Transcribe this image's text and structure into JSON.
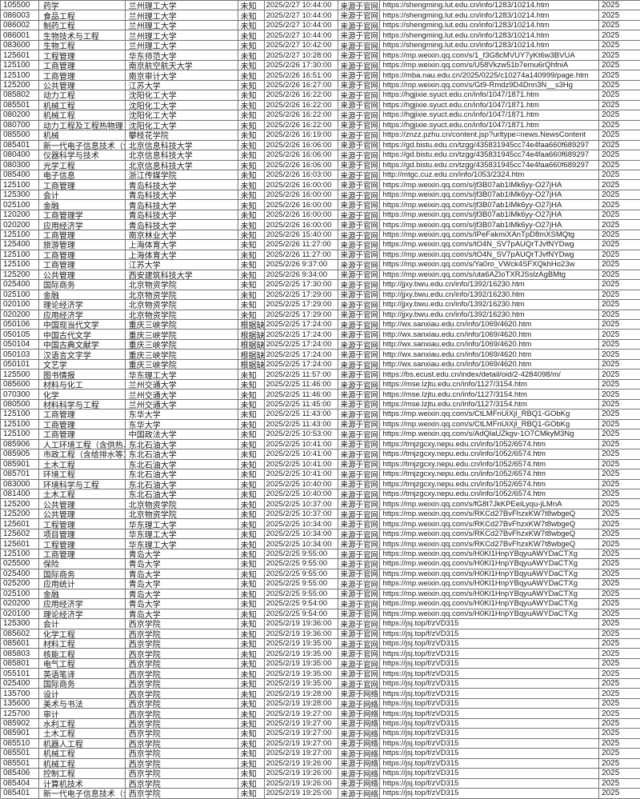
{
  "colors": {
    "background": "#ffffff",
    "grid_border": "#767676",
    "text": "#1c1c1c"
  },
  "table": {
    "columns": [
      "code",
      "subject",
      "university",
      "status",
      "publish_time",
      "source",
      "url",
      "year"
    ],
    "rows": [
      [
        "105500",
        "药学",
        "兰州理工大学",
        "未知",
        "2025/2/27 10:44:00",
        "来源于官网",
        "https://shengming.lut.edu.cn/info/1283/10214.htm",
        "2025"
      ],
      [
        "086003",
        "食品工程",
        "兰州理工大学",
        "未知",
        "2025/2/27 10:44:00",
        "来源于官网",
        "https://shengming.lut.edu.cn/info/1283/10214.htm",
        "2025"
      ],
      [
        "086002",
        "制药工程",
        "兰州理工大学",
        "未知",
        "2025/2/27 10:44:00",
        "来源于官网",
        "https://shengming.lut.edu.cn/info/1283/10214.htm",
        "2025"
      ],
      [
        "086001",
        "生物技术与工程",
        "兰州理工大学",
        "未知",
        "2025/2/27 10:44:00",
        "来源于官网",
        "https://shengming.lut.edu.cn/info/1283/10214.htm",
        "2025"
      ],
      [
        "083600",
        "生物工程",
        "兰州理工大学",
        "未知",
        "2025/2/27 10:42:00",
        "来源于官网",
        "https://shengming.lut.edu.cn/info/1283/10214.htm",
        "2025"
      ],
      [
        "125601",
        "工程管理",
        "华东师范大学",
        "未知",
        "2025/2/27 10:28:00",
        "来源于官网",
        "https://mp.weixin.qq.com/s/1_f3G8cMVUY7yKt6w3BVUA",
        "2025"
      ],
      [
        "125100",
        "工商管理",
        "南京航空航天大学",
        "未知",
        "2025/2/26 17:30:00",
        "来源于官网",
        "https://mp.weixin.qq.com/s/U58Vkzw51b7emu6rQhfniA",
        "2025"
      ],
      [
        "125100",
        "工商管理",
        "南京审计大学",
        "未知",
        "2025/2/26 16:51:00",
        "来源于官网",
        "https://mba.nau.edu.cn/2025/0225/c10274a140999/page.htm",
        "2025"
      ],
      [
        "125200",
        "公共管理",
        "江苏大学",
        "未知",
        "2025/2/26 16:27:00",
        "来源于官网",
        "https://mp.weixin.qq.com/s/Gt9-Rmdz9D4Dnn3N__s3Hg",
        "2025"
      ],
      [
        "085802",
        "动力工程",
        "沈阳化工大学",
        "未知",
        "2025/2/26 16:22:00",
        "来源于官网",
        "https://hgjixie.syuct.edu.cn/info/1047/1871.htm",
        "2025"
      ],
      [
        "085501",
        "机械工程",
        "沈阳化工大学",
        "未知",
        "2025/2/26 16:22:00",
        "来源于官网",
        "https://hgjixie.syuct.edu.cn/info/1047/1871.htm",
        "2025"
      ],
      [
        "080200",
        "机械工程",
        "沈阳化工大学",
        "未知",
        "2025/2/26 16:22:00",
        "来源于官网",
        "https://hgjixie.syuct.edu.cn/info/1047/1871.htm",
        "2025"
      ],
      [
        "080700",
        "动力工程及工程热物理",
        "沈阳化工大学",
        "未知",
        "2025/2/26 16:22:00",
        "来源于官网",
        "https://hgjixie.syuct.edu.cn/info/1047/1871.htm",
        "2025"
      ],
      [
        "085500",
        "机械",
        "攀枝花学院",
        "未知",
        "2025/2/26 16:19:00",
        "来源于官网",
        "https://znzz.pzhu.cn/content.jsp?urltype=news.NewsContent",
        "2025"
      ],
      [
        "085401",
        "新一代电子信息技术（含",
        "北京信息科技大学",
        "未知",
        "2025/2/26 16:06:00",
        "来源于官网",
        "https://gd.bistu.edu.cn/tzgg/435831945cc74e4faa660f689297",
        "2025"
      ],
      [
        "080400",
        "仪器科学与技术",
        "北京信息科技大学",
        "未知",
        "2025/2/26 16:06:00",
        "来源于官网",
        "https://gd.bistu.edu.cn/tzgg/435831945cc74e4faa660f689297",
        "2025"
      ],
      [
        "080300",
        "光学工程",
        "北京信息科技大学",
        "未知",
        "2025/2/26 16:06:00",
        "来源于官网",
        "https://gd.bistu.edu.cn/tzgg/435831945cc74e4faa660f689297",
        "2025"
      ],
      [
        "085400",
        "电子信息",
        "浙江传媒学院",
        "未知",
        "2025/2/26 16:03:00",
        "来源于官网",
        "http://mtgc.cuz.edu.cn/info/1053/2324.htm",
        "2025"
      ],
      [
        "125100",
        "工商管理",
        "青岛科技大学",
        "未知",
        "2025/2/26 16:00:00",
        "来源于官网",
        "https://mp.weixin.qq.com/s/jf3B07ab1IMk6yy-O27jHA",
        "2025"
      ],
      [
        "125300",
        "会计",
        "青岛科技大学",
        "未知",
        "2025/2/26 16:00:00",
        "来源于官网",
        "https://mp.weixin.qq.com/s/jf3B07ab1IMk6yy-O27jHA",
        "2025"
      ],
      [
        "025100",
        "金融",
        "青岛科技大学",
        "未知",
        "2025/2/26 16:00:00",
        "来源于官网",
        "https://mp.weixin.qq.com/s/jf3B07ab1IMk6yy-O27jHA",
        "2025"
      ],
      [
        "120200",
        "工商管理学",
        "青岛科技大学",
        "未知",
        "2025/2/26 16:00:00",
        "来源于官网",
        "https://mp.weixin.qq.com/s/jf3B07ab1IMk6yy-O27jHA",
        "2025"
      ],
      [
        "020200",
        "应用经济学",
        "青岛科技大学",
        "未知",
        "2025/2/26 16:00:00",
        "来源于官网",
        "https://mp.weixin.qq.com/s/jf3B07ab1IMk6yy-O27jHA",
        "2025"
      ],
      [
        "125100",
        "工商管理",
        "南京林业大学",
        "未知",
        "2025/2/26 15:40:00",
        "来源于官网",
        "https://mp.weixin.qq.com/s/IPeFakmiXAnTpD8mXSMQtg",
        "2025"
      ],
      [
        "125400",
        "旅游管理",
        "上海体育大学",
        "未知",
        "2025/2/26 11:27:00",
        "来源于官网",
        "https://mp.weixin.qq.com/s/tO4N_SV7pAUQrTJvfNYDwg",
        "2025"
      ],
      [
        "125100",
        "工商管理",
        "上海体育大学",
        "未知",
        "2025/2/26 11:27:00",
        "来源于官网",
        "https://mp.weixin.qq.com/s/tO4N_SV7pAUQrTJvfNYDwg",
        "2025"
      ],
      [
        "125100",
        "工商管理",
        "江苏大学",
        "未知",
        "2025/2/26 9:37:00",
        "来源于官网",
        "https://mp.weixin.qq.com/s/Ya0ro_VWck4SFXQkhHo23w",
        "2025"
      ],
      [
        "125200",
        "公共管理",
        "西安建筑科技大学",
        "未知",
        "2025/2/26 9:34:00",
        "来源于官网",
        "https://mp.weixin.qq.com/s/uta6AZIoTXRJSslzAgBMtg",
        "2025"
      ],
      [
        "025400",
        "国际商务",
        "北京物资学院",
        "未知",
        "2025/2/25 17:30:00",
        "来源于官网",
        "http://jjxy.bwu.edu.cn/info/1392/16230.htm",
        "2025"
      ],
      [
        "025100",
        "金融",
        "北京物资学院",
        "未知",
        "2025/2/25 17:29:00",
        "来源于官网",
        "http://jjxy.bwu.edu.cn/info/1392/16230.htm",
        "2025"
      ],
      [
        "020100",
        "理论经济学",
        "北京物资学院",
        "未知",
        "2025/2/25 17:29:00",
        "来源于官网",
        "http://jjxy.bwu.edu.cn/info/1392/16230.htm",
        "2025"
      ],
      [
        "020200",
        "应用经济学",
        "北京物资学院",
        "未知",
        "2025/2/25 17:29:00",
        "来源于官网",
        "http://jjxy.bwu.edu.cn/info/1392/16230.htm",
        "2025"
      ],
      [
        "050106",
        "中国现当代文学",
        "重庆三峡学院",
        "根据缺额",
        "2025/2/25 17:24:00",
        "来源于官网",
        "http://wx.sanxiau.edu.cn/info/1069/4620.htm",
        "2025"
      ],
      [
        "050105",
        "中国古代文学",
        "重庆三峡学院",
        "根据缺额",
        "2025/2/25 17:24:00",
        "来源于官网",
        "http://wx.sanxiau.edu.cn/info/1069/4620.htm",
        "2025"
      ],
      [
        "050104",
        "中国古典文献学",
        "重庆三峡学院",
        "根据缺额",
        "2025/2/25 17:24:00",
        "来源于官网",
        "http://wx.sanxiau.edu.cn/info/1069/4620.htm",
        "2025"
      ],
      [
        "050103",
        "汉语言文字学",
        "重庆三峡学院",
        "根据缺额",
        "2025/2/25 17:24:00",
        "来源于官网",
        "http://wx.sanxiau.edu.cn/info/1069/4620.htm",
        "2025"
      ],
      [
        "050101",
        "文艺学",
        "重庆三峡学院",
        "根据缺额",
        "2025/2/25 17:24:00",
        "来源于官网",
        "http://wx.sanxiau.edu.cn/info/1069/4620.htm",
        "2025"
      ],
      [
        "125500",
        "图书情报",
        "华东理工大学",
        "未知",
        "2025/2/25 11:57:00",
        "来源于官网",
        "https://bs.ecust.edu.cn/index/detail/oid/2-4284098/m/",
        "2025"
      ],
      [
        "085600",
        "材料与化工",
        "兰州交通大学",
        "未知",
        "2025/2/25 11:46:00",
        "来源于官网",
        "https://mse.lzjtu.edu.cn/info/1127/3154.htm",
        "2025"
      ],
      [
        "070300",
        "化学",
        "兰州交通大学",
        "未知",
        "2025/2/25 11:46:00",
        "来源于官网",
        "https://mse.lzjtu.edu.cn/info/1127/3154.htm",
        "2025"
      ],
      [
        "080500",
        "材料科学与工程",
        "兰州交通大学",
        "未知",
        "2025/2/25 11:45:00",
        "来源于官网",
        "https://mse.lzjtu.edu.cn/info/1127/3154.htm",
        "2025"
      ],
      [
        "125100",
        "工商管理",
        "东华大学",
        "未知",
        "2025/2/25 11:43:00",
        "来源于官网",
        "https://mp.weixin.qq.com/s/CtLMFnUiXjl_RBQ1-GObKg",
        "2025"
      ],
      [
        "125100",
        "工商管理",
        "东华大学",
        "未知",
        "2025/2/25 11:43:00",
        "来源于官网",
        "https://mp.weixin.qq.com/s/CtLMFnUiXjl_RBQ1-GObKg",
        "2025"
      ],
      [
        "125100",
        "工商管理",
        "中国政法大学",
        "未知",
        "2025/2/25 10:53:00",
        "来源于官网",
        "https://mp.weixin.qq.com/s/AdQlaUZkgv-1O7CMkyM3Ng",
        "2025"
      ],
      [
        "085906",
        "人工环境工程（含供热、",
        "东北石油大学",
        "未知",
        "2025/2/25 10:41:00",
        "来源于官网",
        "https://tmjzgcxy.nepu.edu.cn/info/1052/6574.htm",
        "2025"
      ],
      [
        "085905",
        "市政工程（含给排水等）",
        "东北石油大学",
        "未知",
        "2025/2/25 10:41:00",
        "来源于官网",
        "https://tmjzgcxy.nepu.edu.cn/info/1052/6574.htm",
        "2025"
      ],
      [
        "085901",
        "土木工程",
        "东北石油大学",
        "未知",
        "2025/2/25 10:41:00",
        "来源于官网",
        "https://tmjzgcxy.nepu.edu.cn/info/1052/6574.htm",
        "2025"
      ],
      [
        "085701",
        "环境工程",
        "东北石油大学",
        "未知",
        "2025/2/25 10:41:00",
        "来源于官网",
        "https://tmjzgcxy.nepu.edu.cn/info/1052/6574.htm",
        "2025"
      ],
      [
        "083000",
        "环境科学与工程",
        "东北石油大学",
        "未知",
        "2025/2/25 10:40:00",
        "来源于官网",
        "https://tmjzgcxy.nepu.edu.cn/info/1052/6574.htm",
        "2025"
      ],
      [
        "081400",
        "土木工程",
        "东北石油大学",
        "未知",
        "2025/2/25 10:40:00",
        "来源于官网",
        "https://tmjzgcxy.nepu.edu.cn/info/1052/6574.htm",
        "2025"
      ],
      [
        "125200",
        "公共管理",
        "北京物资学院",
        "未知",
        "2025/2/25 10:37:00",
        "来源于官网",
        "https://mp.weixin.qq.com/s/fG8t7JkKPEeiLyqu-jLMnA",
        "2025"
      ],
      [
        "125200",
        "公共管理",
        "北京物资学院",
        "未知",
        "2025/2/25 10:37:00",
        "来源于官网",
        "https://mp.weixin.qq.com/s/RKCd27BvFhzxKW7t8wbgeQ",
        "2025"
      ],
      [
        "125601",
        "工程管理",
        "华东理工大学",
        "未知",
        "2025/2/25 10:34:00",
        "来源于官网",
        "https://mp.weixin.qq.com/s/RKCd27BvFhzxKW7t8wbgeQ",
        "2025"
      ],
      [
        "125602",
        "项目管理",
        "华东理工大学",
        "未知",
        "2025/2/25 10:34:00",
        "来源于官网",
        "https://mp.weixin.qq.com/s/RKCd27BvFhzxKW7t8wbgeQ",
        "2025"
      ],
      [
        "125601",
        "工程管理",
        "华东理工大学",
        "未知",
        "2025/2/25 10:34:00",
        "来源于官网",
        "https://mp.weixin.qq.com/s/RKCd27BvFhzxKW7t8wbgeQ",
        "2025"
      ],
      [
        "125100",
        "工商管理",
        "青岛大学",
        "未知",
        "2025/2/25 9:55:00",
        "来源于官网",
        "https://mp.weixin.qq.com/s/H0Kl1HnpYBqyuAWYDaCTXg",
        "2025"
      ],
      [
        "025500",
        "保险",
        "青岛大学",
        "未知",
        "2025/2/25 9:55:00",
        "来源于官网",
        "https://mp.weixin.qq.com/s/H0Kl1HnpYBqyuAWYDaCTXg",
        "2025"
      ],
      [
        "025400",
        "国际商务",
        "青岛大学",
        "未知",
        "2025/2/25 9:55:00",
        "来源于官网",
        "https://mp.weixin.qq.com/s/H0Kl1HnpYBqyuAWYDaCTXg",
        "2025"
      ],
      [
        "025200",
        "应用统计",
        "青岛大学",
        "未知",
        "2025/2/25 9:55:00",
        "来源于官网",
        "https://mp.weixin.qq.com/s/H0Kl1HnpYBqyuAWYDaCTXg",
        "2025"
      ],
      [
        "025100",
        "金融",
        "青岛大学",
        "未知",
        "2025/2/25 9:55:00",
        "来源于官网",
        "https://mp.weixin.qq.com/s/H0Kl1HnpYBqyuAWYDaCTXg",
        "2025"
      ],
      [
        "020200",
        "应用经济学",
        "青岛大学",
        "未知",
        "2025/2/25 9:54:00",
        "来源于官网",
        "https://mp.weixin.qq.com/s/H0Kl1HnpYBqyuAWYDaCTXg",
        "2025"
      ],
      [
        "020100",
        "理论经济学",
        "青岛大学",
        "未知",
        "2025/2/25 9:54:00",
        "来源于官网",
        "https://mp.weixin.qq.com/s/H0Kl1HnpYBqyuAWYDaCTXg",
        "2025"
      ],
      [
        "125300",
        "会计",
        "西京学院",
        "未知",
        "2025/2/19 19:36:00",
        "来源于官网",
        "https://jsj.top/f/zVD315",
        "2025"
      ],
      [
        "085602",
        "化学工程",
        "西京学院",
        "未知",
        "2025/2/19 19:36:00",
        "来源于官网",
        "https://jsj.top/f/zVD315",
        "2025"
      ],
      [
        "085601",
        "材料工程",
        "西京学院",
        "未知",
        "2025/2/19 19:35:00",
        "来源于官网",
        "https://jsj.top/f/zVD315",
        "2025"
      ],
      [
        "085803",
        "核能工程",
        "西京学院",
        "未知",
        "2025/2/19 19:35:00",
        "来源于官网",
        "https://jsj.top/f/zVD315",
        "2025"
      ],
      [
        "085801",
        "电气工程",
        "西京学院",
        "未知",
        "2025/2/19 19:35:00",
        "来源于官网",
        "https://jsj.top/f/zVD315",
        "2025"
      ],
      [
        "055101",
        "英语笔译",
        "西京学院",
        "未知",
        "2025/2/19 19:35:00",
        "来源于官网",
        "https://jsj.top/f/zVD315",
        "2025"
      ],
      [
        "025400",
        "国际商务",
        "西京学院",
        "未知",
        "2025/2/19 19:35:00",
        "来源于官网",
        "https://jsj.top/f/zVD315",
        "2025"
      ],
      [
        "135700",
        "设计",
        "西京学院",
        "未知",
        "2025/2/19 19:28:00",
        "来源于网络",
        "https://jsj.top/f/zVD315",
        "2025"
      ],
      [
        "135600",
        "美术与书法",
        "西京学院",
        "未知",
        "2025/2/19 19:28:00",
        "来源于网络",
        "https://jsj.top/f/zVD315",
        "2025"
      ],
      [
        "125700",
        "审计",
        "西京学院",
        "未知",
        "2025/2/19 19:27:00",
        "来源于网络",
        "https://jsj.top/f/zVD315",
        "2025"
      ],
      [
        "085902",
        "水利工程",
        "西京学院",
        "未知",
        "2025/2/19 19:27:00",
        "来源于网络",
        "https://jsj.top/f/zVD315",
        "2025"
      ],
      [
        "085901",
        "土木工程",
        "西京学院",
        "未知",
        "2025/2/19 19:27:00",
        "来源于网络",
        "https://jsj.top/f/zVD315",
        "2025"
      ],
      [
        "085510",
        "机器人工程",
        "西京学院",
        "未知",
        "2025/2/19 19:27:00",
        "来源于网络",
        "https://jsj.top/f/zVD315",
        "2025"
      ],
      [
        "085501",
        "机械工程",
        "西京学院",
        "未知",
        "2025/2/19 19:27:00",
        "来源于网络",
        "https://jsj.top/f/zVD315",
        "2025"
      ],
      [
        "085501",
        "机械工程",
        "西京学院",
        "未知",
        "2025/2/19 19:26:00",
        "来源于网络",
        "https://jsj.top/f/zVD315",
        "2025"
      ],
      [
        "085406",
        "控制工程",
        "西京学院",
        "未知",
        "2025/2/19 19:26:00",
        "来源于网络",
        "https://jsj.top/f/zVD315",
        "2025"
      ],
      [
        "085404",
        "计算机技术",
        "西京学院",
        "未知",
        "2025/2/19 19:26:00",
        "来源于网络",
        "https://jsj.top/f/zVD315",
        "2025"
      ],
      [
        "085401",
        "新一代电子信息技术（含",
        "西京学院",
        "未知",
        "2025/2/19 19:25:00",
        "来源于网络",
        "https://jsj.top/f/zVD315",
        "2025"
      ]
    ]
  }
}
